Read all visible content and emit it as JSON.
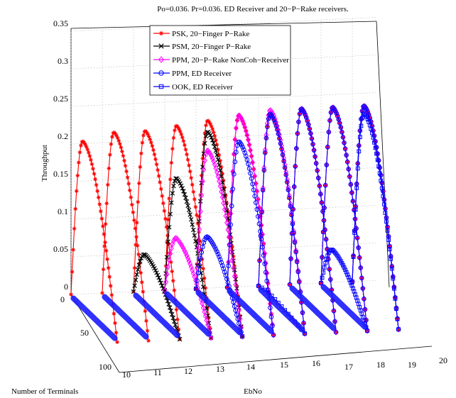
{
  "chart_data": {
    "type": "line",
    "title": "Po=0.036. Pr=0.036. ED Receiver and 20−P−Rake receivers.",
    "xlabel": "EbNo",
    "ylabel": "Number of Terminals",
    "zlabel": "Throughput",
    "x_ticks": [
      "10",
      "11",
      "12",
      "13",
      "14",
      "15",
      "16",
      "17",
      "18",
      "19",
      "20"
    ],
    "y_ticks": [
      "0",
      "50",
      "100"
    ],
    "z_ticks": [
      "0",
      "0.05",
      "0.1",
      "0.15",
      "0.2",
      "0.25",
      "0.3",
      "0.35"
    ],
    "xlim": [
      10,
      20
    ],
    "ylim": [
      0,
      100
    ],
    "zlim": [
      0,
      0.35
    ],
    "grid": true,
    "legend_position": "top",
    "series": [
      {
        "name": "PSK, 20−Finger P−Rake",
        "color": "#ff0000",
        "marker": "asterisk",
        "peaks": [
          [
            10,
            0.22
          ],
          [
            11,
            0.23
          ],
          [
            12,
            0.23
          ],
          [
            13,
            0.235
          ],
          [
            14,
            0.24
          ],
          [
            15,
            0.245
          ],
          [
            16,
            0.245
          ],
          [
            17,
            0.25
          ],
          [
            18,
            0.25
          ],
          [
            19,
            0.25
          ]
        ]
      },
      {
        "name": "PSM, 20−Finger P−Rake",
        "color": "#000000",
        "marker": "x",
        "peaks": [
          [
            12,
            0.065
          ],
          [
            13,
            0.165
          ],
          [
            14,
            0.225
          ]
        ]
      },
      {
        "name": "PPM, 20−P−Rake NonCoh−Receiver",
        "color": "#ff00ff",
        "marker": "diamond",
        "peaks": [
          [
            13,
            0.085
          ],
          [
            14,
            0.2
          ],
          [
            15,
            0.245
          ],
          [
            16,
            0.25
          ],
          [
            17,
            0.25
          ],
          [
            18,
            0.25
          ],
          [
            19,
            0.25
          ]
        ]
      },
      {
        "name": "PPM, ED Receiver",
        "color": "#0000ff",
        "marker": "circle",
        "peaks": [
          [
            14,
            0.085
          ],
          [
            15,
            0.21
          ],
          [
            16,
            0.245
          ],
          [
            17,
            0.25
          ],
          [
            18,
            0.25
          ],
          [
            19,
            0.25
          ]
        ]
      },
      {
        "name": "OOK, ED Receiver",
        "color": "#0000ff",
        "marker": "square",
        "peaks": [
          [
            16,
            0.005
          ],
          [
            18,
            0.06
          ],
          [
            19,
            0.24
          ]
        ]
      }
    ]
  }
}
